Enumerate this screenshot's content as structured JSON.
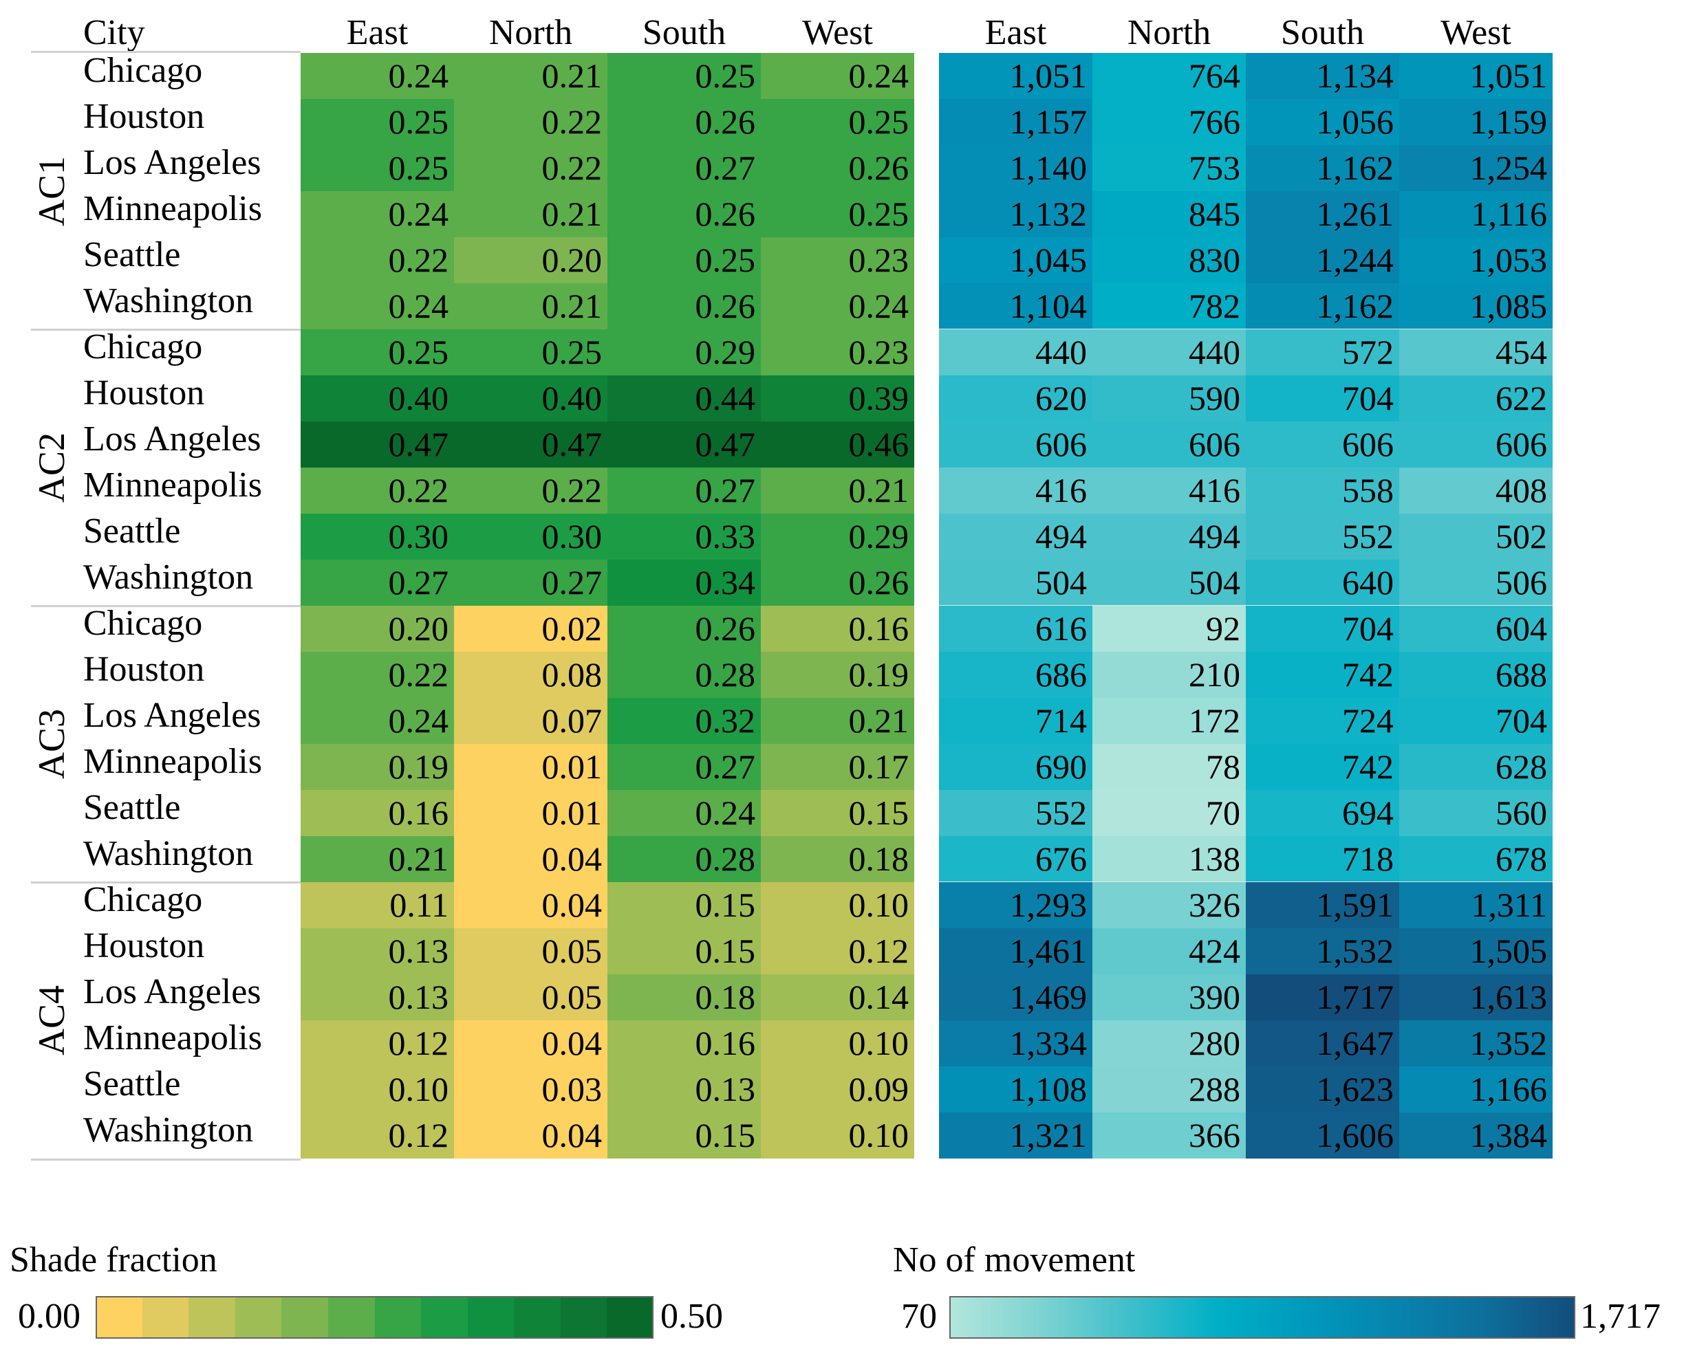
{
  "chart_data": {
    "type": "heatmap",
    "panels": [
      {
        "name": "Shade fraction",
        "columns": [
          "East",
          "North",
          "South",
          "West"
        ],
        "range": [
          0.0,
          0.5
        ],
        "groups": [
          {
            "label": "AC1",
            "rows": [
              {
                "city": "Chicago",
                "values": [
                  "0.24",
                  "0.21",
                  "0.25",
                  "0.24"
                ]
              },
              {
                "city": "Houston",
                "values": [
                  "0.25",
                  "0.22",
                  "0.26",
                  "0.25"
                ]
              },
              {
                "city": "Los Angeles",
                "values": [
                  "0.25",
                  "0.22",
                  "0.27",
                  "0.26"
                ]
              },
              {
                "city": "Minneapolis",
                "values": [
                  "0.24",
                  "0.21",
                  "0.26",
                  "0.25"
                ]
              },
              {
                "city": "Seattle",
                "values": [
                  "0.22",
                  "0.20",
                  "0.25",
                  "0.23"
                ]
              },
              {
                "city": "Washington",
                "values": [
                  "0.24",
                  "0.21",
                  "0.26",
                  "0.24"
                ]
              }
            ]
          },
          {
            "label": "AC2",
            "rows": [
              {
                "city": "Chicago",
                "values": [
                  "0.25",
                  "0.25",
                  "0.29",
                  "0.23"
                ]
              },
              {
                "city": "Houston",
                "values": [
                  "0.40",
                  "0.40",
                  "0.44",
                  "0.39"
                ]
              },
              {
                "city": "Los Angeles",
                "values": [
                  "0.47",
                  "0.47",
                  "0.47",
                  "0.46"
                ]
              },
              {
                "city": "Minneapolis",
                "values": [
                  "0.22",
                  "0.22",
                  "0.27",
                  "0.21"
                ]
              },
              {
                "city": "Seattle",
                "values": [
                  "0.30",
                  "0.30",
                  "0.33",
                  "0.29"
                ]
              },
              {
                "city": "Washington",
                "values": [
                  "0.27",
                  "0.27",
                  "0.34",
                  "0.26"
                ]
              }
            ]
          },
          {
            "label": "AC3",
            "rows": [
              {
                "city": "Chicago",
                "values": [
                  "0.20",
                  "0.02",
                  "0.26",
                  "0.16"
                ]
              },
              {
                "city": "Houston",
                "values": [
                  "0.22",
                  "0.08",
                  "0.28",
                  "0.19"
                ]
              },
              {
                "city": "Los Angeles",
                "values": [
                  "0.24",
                  "0.07",
                  "0.32",
                  "0.21"
                ]
              },
              {
                "city": "Minneapolis",
                "values": [
                  "0.19",
                  "0.01",
                  "0.27",
                  "0.17"
                ]
              },
              {
                "city": "Seattle",
                "values": [
                  "0.16",
                  "0.01",
                  "0.24",
                  "0.15"
                ]
              },
              {
                "city": "Washington",
                "values": [
                  "0.21",
                  "0.04",
                  "0.28",
                  "0.18"
                ]
              }
            ]
          },
          {
            "label": "AC4",
            "rows": [
              {
                "city": "Chicago",
                "values": [
                  "0.11",
                  "0.04",
                  "0.15",
                  "0.10"
                ]
              },
              {
                "city": "Houston",
                "values": [
                  "0.13",
                  "0.05",
                  "0.15",
                  "0.12"
                ]
              },
              {
                "city": "Los Angeles",
                "values": [
                  "0.13",
                  "0.05",
                  "0.18",
                  "0.14"
                ]
              },
              {
                "city": "Minneapolis",
                "values": [
                  "0.12",
                  "0.04",
                  "0.16",
                  "0.10"
                ]
              },
              {
                "city": "Seattle",
                "values": [
                  "0.10",
                  "0.03",
                  "0.13",
                  "0.09"
                ]
              },
              {
                "city": "Washington",
                "values": [
                  "0.12",
                  "0.04",
                  "0.15",
                  "0.10"
                ]
              }
            ]
          }
        ]
      },
      {
        "name": "No of movement",
        "columns": [
          "East",
          "North",
          "South",
          "West"
        ],
        "range": [
          70,
          1717
        ],
        "groups": [
          {
            "label": "AC1",
            "rows": [
              {
                "values": [
                  "1,051",
                  "764",
                  "1,134",
                  "1,051"
                ]
              },
              {
                "values": [
                  "1,157",
                  "766",
                  "1,056",
                  "1,159"
                ]
              },
              {
                "values": [
                  "1,140",
                  "753",
                  "1,162",
                  "1,254"
                ]
              },
              {
                "values": [
                  "1,132",
                  "845",
                  "1,261",
                  "1,116"
                ]
              },
              {
                "values": [
                  "1,045",
                  "830",
                  "1,244",
                  "1,053"
                ]
              },
              {
                "values": [
                  "1,104",
                  "782",
                  "1,162",
                  "1,085"
                ]
              }
            ]
          },
          {
            "label": "AC2",
            "rows": [
              {
                "values": [
                  "440",
                  "440",
                  "572",
                  "454"
                ]
              },
              {
                "values": [
                  "620",
                  "590",
                  "704",
                  "622"
                ]
              },
              {
                "values": [
                  "606",
                  "606",
                  "606",
                  "606"
                ]
              },
              {
                "values": [
                  "416",
                  "416",
                  "558",
                  "408"
                ]
              },
              {
                "values": [
                  "494",
                  "494",
                  "552",
                  "502"
                ]
              },
              {
                "values": [
                  "504",
                  "504",
                  "640",
                  "506"
                ]
              }
            ]
          },
          {
            "label": "AC3",
            "rows": [
              {
                "values": [
                  "616",
                  "92",
                  "704",
                  "604"
                ]
              },
              {
                "values": [
                  "686",
                  "210",
                  "742",
                  "688"
                ]
              },
              {
                "values": [
                  "714",
                  "172",
                  "724",
                  "704"
                ]
              },
              {
                "values": [
                  "690",
                  "78",
                  "742",
                  "628"
                ]
              },
              {
                "values": [
                  "552",
                  "70",
                  "694",
                  "560"
                ]
              },
              {
                "values": [
                  "676",
                  "138",
                  "718",
                  "678"
                ]
              }
            ]
          },
          {
            "label": "AC4",
            "rows": [
              {
                "values": [
                  "1,293",
                  "326",
                  "1,591",
                  "1,311"
                ]
              },
              {
                "values": [
                  "1,461",
                  "424",
                  "1,532",
                  "1,505"
                ]
              },
              {
                "values": [
                  "1,469",
                  "390",
                  "1,717",
                  "1,613"
                ]
              },
              {
                "values": [
                  "1,334",
                  "280",
                  "1,647",
                  "1,352"
                ]
              },
              {
                "values": [
                  "1,108",
                  "288",
                  "1,623",
                  "1,166"
                ]
              },
              {
                "values": [
                  "1,321",
                  "366",
                  "1,606",
                  "1,384"
                ]
              }
            ]
          }
        ]
      }
    ],
    "row_header": "City",
    "legends": [
      {
        "title": "Shade fraction",
        "min_label": "0.00",
        "max_label": "0.50",
        "min": 0.0,
        "max": 0.5,
        "steps": 12
      },
      {
        "title": "No of movement",
        "min_label": "70",
        "max_label": "1,717",
        "min": 70,
        "max": 1717
      }
    ]
  },
  "colors": {
    "green_scale": [
      "#fed260",
      "#dfcb5f",
      "#bec35a",
      "#9fbd55",
      "#7fb550",
      "#5cae4a",
      "#37a446",
      "#1d9c46",
      "#10913f",
      "#0f8438",
      "#0c7632",
      "#09692b"
    ],
    "blue_scale": [
      "#b2e6dc",
      "#7fd3d2",
      "#3fbfca",
      "#00afc6",
      "#0099bd",
      "#0784ae",
      "#0e6f9b",
      "#134d7c"
    ],
    "separator": "#d0d0d0"
  }
}
